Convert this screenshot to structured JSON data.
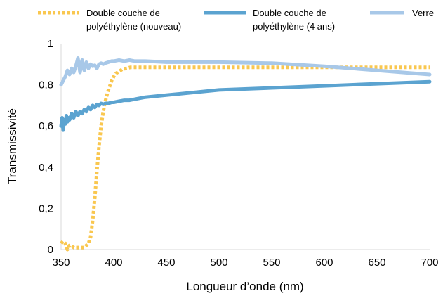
{
  "chart_data": {
    "type": "line",
    "title": "",
    "xlabel": "Longueur d’onde (nm)",
    "ylabel": "Transmissivité",
    "xlim": [
      350,
      700
    ],
    "ylim": [
      0,
      1
    ],
    "xticks": [
      350,
      400,
      450,
      500,
      550,
      600,
      650,
      700
    ],
    "xtick_labels": [
      "350",
      "400",
      "450",
      "500",
      "550",
      "600",
      "650",
      "700"
    ],
    "yticks": [
      0,
      0.2,
      0.4,
      0.6,
      0.8,
      1
    ],
    "ytick_labels": [
      "0",
      "0,2",
      "0,4",
      "0,6",
      "0,8",
      "1"
    ],
    "grid": false,
    "legend_position": "top",
    "series": [
      {
        "name": "Double couche de polyéthylène (nouveau)",
        "legend_lines": [
          "Double couche de",
          "polyéthylène (nouveau)"
        ],
        "color": "#F9C74F",
        "style": "dotted",
        "x": [
          350,
          352,
          354,
          356,
          358,
          360,
          362,
          364,
          366,
          368,
          370,
          372,
          374,
          376,
          378,
          380,
          382,
          384,
          386,
          388,
          390,
          392,
          394,
          396,
          398,
          400,
          402,
          405,
          408,
          412,
          416,
          420,
          430,
          450,
          500,
          550,
          600,
          650,
          700
        ],
        "y": [
          0.03,
          0.04,
          0.03,
          0.0,
          0.02,
          0.02,
          0.01,
          0.01,
          0.01,
          0.01,
          0.01,
          0.01,
          0.02,
          0.03,
          0.06,
          0.14,
          0.25,
          0.38,
          0.5,
          0.6,
          0.67,
          0.72,
          0.76,
          0.79,
          0.82,
          0.84,
          0.855,
          0.865,
          0.875,
          0.88,
          0.885,
          0.885,
          0.885,
          0.885,
          0.885,
          0.885,
          0.885,
          0.885,
          0.885
        ]
      },
      {
        "name": "Double couche de polyéthylène (4 ans)",
        "legend_lines": [
          "Double couche de",
          "polyéthylène (4 ans)"
        ],
        "color": "#5BA3D0",
        "style": "solid",
        "x": [
          350,
          351,
          352,
          353,
          354,
          355,
          356,
          357,
          358,
          360,
          362,
          364,
          366,
          368,
          370,
          372,
          374,
          376,
          378,
          380,
          382,
          384,
          386,
          388,
          390,
          392,
          395,
          398,
          400,
          405,
          410,
          415,
          420,
          430,
          450,
          500,
          550,
          600,
          650,
          700
        ],
        "y": [
          0.6,
          0.64,
          0.58,
          0.63,
          0.61,
          0.65,
          0.62,
          0.64,
          0.63,
          0.66,
          0.64,
          0.67,
          0.65,
          0.67,
          0.66,
          0.68,
          0.67,
          0.69,
          0.68,
          0.7,
          0.69,
          0.705,
          0.7,
          0.71,
          0.705,
          0.71,
          0.71,
          0.715,
          0.715,
          0.72,
          0.725,
          0.725,
          0.73,
          0.74,
          0.75,
          0.775,
          0.785,
          0.795,
          0.805,
          0.815
        ]
      },
      {
        "name": "Verre",
        "legend_lines": [
          "Verre"
        ],
        "color": "#A8C8E8",
        "style": "solid",
        "x": [
          350,
          352,
          354,
          356,
          358,
          360,
          362,
          364,
          366,
          368,
          370,
          372,
          374,
          376,
          378,
          380,
          382,
          384,
          386,
          388,
          390,
          392,
          395,
          398,
          400,
          405,
          410,
          415,
          420,
          430,
          450,
          500,
          550,
          600,
          650,
          700
        ],
        "y": [
          0.8,
          0.82,
          0.84,
          0.87,
          0.85,
          0.88,
          0.86,
          0.89,
          0.93,
          0.86,
          0.92,
          0.87,
          0.91,
          0.88,
          0.9,
          0.89,
          0.895,
          0.88,
          0.9,
          0.905,
          0.9,
          0.905,
          0.91,
          0.915,
          0.915,
          0.92,
          0.915,
          0.92,
          0.915,
          0.915,
          0.91,
          0.91,
          0.905,
          0.89,
          0.87,
          0.85
        ]
      }
    ]
  }
}
